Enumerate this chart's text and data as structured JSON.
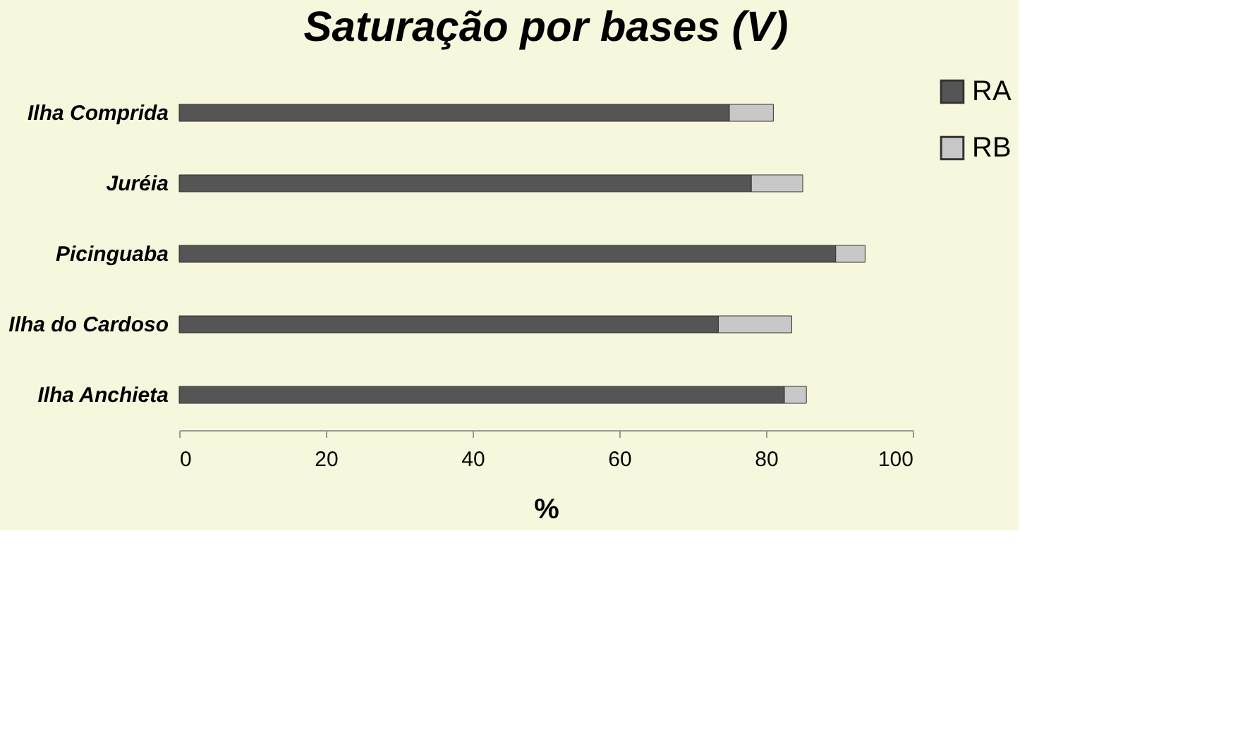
{
  "chart_data": {
    "type": "bar",
    "orientation": "horizontal",
    "stacked": true,
    "title": "Saturação por bases (V)",
    "xlabel": "%",
    "categories": [
      "Ilha Comprida",
      "Juréia",
      "Picinguaba",
      "Ilha do Cardoso",
      "Ilha Anchieta"
    ],
    "series": [
      {
        "name": "RA",
        "color": "#555555",
        "values": [
          75,
          78,
          89.5,
          73.5,
          82.5
        ]
      },
      {
        "name": "RB",
        "color": "#c8c8c8",
        "values": [
          6,
          7,
          4,
          10,
          3
        ]
      }
    ],
    "xlim": [
      0,
      100
    ],
    "xticks": [
      0,
      20,
      40,
      60,
      80,
      100
    ],
    "grid": false,
    "legend": "right"
  }
}
